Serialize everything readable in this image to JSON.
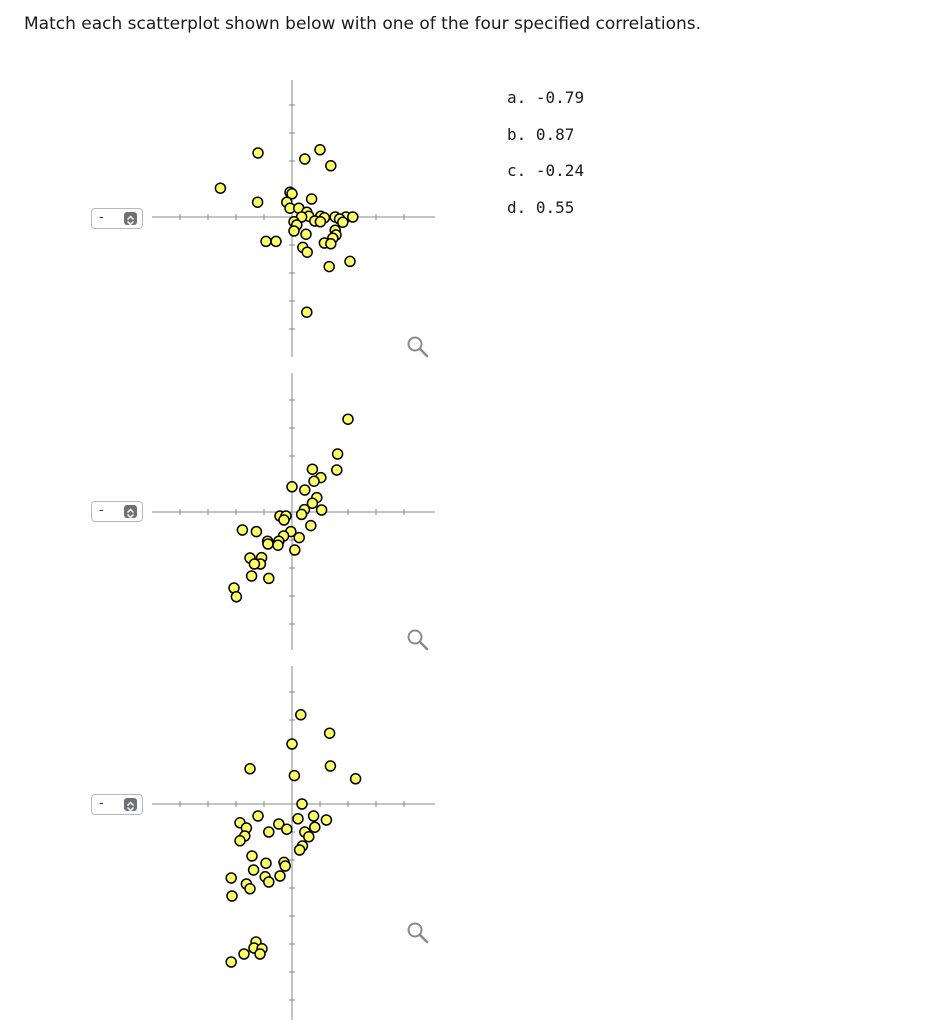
{
  "instruction": "Match each scatterplot shown below with one of the four specified correlations.",
  "choices": [
    {
      "letter": "a.",
      "value": "-0.79"
    },
    {
      "letter": "b.",
      "value": "0.87"
    },
    {
      "letter": "c.",
      "value": "-0.24"
    },
    {
      "letter": "d.",
      "value": "0.55"
    }
  ],
  "selects": [
    {
      "value": "-",
      "icon": "up-down-arrows-icon"
    },
    {
      "value": "-",
      "icon": "up-down-arrows-icon"
    },
    {
      "value": "-",
      "icon": "up-down-arrows-icon"
    }
  ],
  "colors": {
    "point_fill": "#ffff66",
    "point_stroke": "#000000",
    "axis": "#888888"
  },
  "chart_data": [
    {
      "type": "scatter",
      "points": [
        {
          "x": -0.85,
          "y": 1.6
        },
        {
          "x": 0.32,
          "y": 1.45
        },
        {
          "x": 0.7,
          "y": 1.68
        },
        {
          "x": 0.97,
          "y": 1.28
        },
        {
          "x": -1.79,
          "y": 0.72
        },
        {
          "x": -0.05,
          "y": 0.62
        },
        {
          "x": 0.0,
          "y": 0.58
        },
        {
          "x": 0.49,
          "y": 0.45
        },
        {
          "x": -0.86,
          "y": 0.37
        },
        {
          "x": -0.13,
          "y": 0.37
        },
        {
          "x": -0.05,
          "y": 0.22
        },
        {
          "x": 0.17,
          "y": 0.22
        },
        {
          "x": 0.37,
          "y": 0.12
        },
        {
          "x": 0.42,
          "y": 0.02
        },
        {
          "x": 0.72,
          "y": 0.02
        },
        {
          "x": 0.81,
          "y": -0.02
        },
        {
          "x": 1.08,
          "y": 0.0
        },
        {
          "x": 1.35,
          "y": 0.0
        },
        {
          "x": 1.19,
          "y": -0.05
        },
        {
          "x": 0.57,
          "y": -0.1
        },
        {
          "x": 0.71,
          "y": -0.12
        },
        {
          "x": 1.27,
          "y": -0.13
        },
        {
          "x": 1.52,
          "y": 0.0
        },
        {
          "x": 0.24,
          "y": 0.0
        },
        {
          "x": 0.05,
          "y": -0.12
        },
        {
          "x": 0.12,
          "y": -0.2
        },
        {
          "x": 0.05,
          "y": -0.35
        },
        {
          "x": 1.08,
          "y": -0.33
        },
        {
          "x": 0.35,
          "y": -0.43
        },
        {
          "x": 1.1,
          "y": -0.45
        },
        {
          "x": 1.02,
          "y": -0.53
        },
        {
          "x": -0.65,
          "y": -0.61
        },
        {
          "x": -0.4,
          "y": -0.61
        },
        {
          "x": 0.81,
          "y": -0.65
        },
        {
          "x": 0.97,
          "y": -0.67
        },
        {
          "x": 0.27,
          "y": -0.76
        },
        {
          "x": 0.38,
          "y": -0.88
        },
        {
          "x": 1.45,
          "y": -1.11
        },
        {
          "x": 0.93,
          "y": -1.24
        },
        {
          "x": 0.37,
          "y": -2.38
        }
      ]
    },
    {
      "type": "scatter",
      "points": [
        {
          "x": 1.4,
          "y": 2.32
        },
        {
          "x": 1.14,
          "y": 1.45
        },
        {
          "x": 1.12,
          "y": 1.05
        },
        {
          "x": 0.51,
          "y": 1.07
        },
        {
          "x": 0.72,
          "y": 0.86
        },
        {
          "x": 0.55,
          "y": 0.77
        },
        {
          "x": 0.0,
          "y": 0.63
        },
        {
          "x": 0.32,
          "y": 0.55
        },
        {
          "x": 0.62,
          "y": 0.36
        },
        {
          "x": 0.51,
          "y": 0.22
        },
        {
          "x": 0.74,
          "y": 0.05
        },
        {
          "x": 0.31,
          "y": 0.06
        },
        {
          "x": 0.24,
          "y": -0.06
        },
        {
          "x": -0.3,
          "y": -0.1
        },
        {
          "x": -0.15,
          "y": -0.1
        },
        {
          "x": -0.2,
          "y": -0.2
        },
        {
          "x": 0.47,
          "y": -0.34
        },
        {
          "x": -1.24,
          "y": -0.45
        },
        {
          "x": -0.89,
          "y": -0.49
        },
        {
          "x": -0.03,
          "y": -0.49
        },
        {
          "x": -0.21,
          "y": -0.6
        },
        {
          "x": 0.18,
          "y": -0.64
        },
        {
          "x": -0.61,
          "y": -0.73
        },
        {
          "x": -0.33,
          "y": -0.73
        },
        {
          "x": -0.35,
          "y": -0.83
        },
        {
          "x": -0.6,
          "y": -0.8
        },
        {
          "x": 0.07,
          "y": -0.95
        },
        {
          "x": -1.05,
          "y": -1.15
        },
        {
          "x": -0.76,
          "y": -1.14
        },
        {
          "x": -0.79,
          "y": -1.3
        },
        {
          "x": -0.94,
          "y": -1.3
        },
        {
          "x": -1.01,
          "y": -1.6
        },
        {
          "x": -0.58,
          "y": -1.66
        },
        {
          "x": -1.45,
          "y": -1.9
        },
        {
          "x": -1.39,
          "y": -2.12
        }
      ]
    },
    {
      "type": "scatter",
      "points": [
        {
          "x": 0.22,
          "y": 2.23
        },
        {
          "x": 0.0,
          "y": 1.5
        },
        {
          "x": 0.94,
          "y": 1.77
        },
        {
          "x": 0.96,
          "y": 0.95
        },
        {
          "x": -1.05,
          "y": 0.88
        },
        {
          "x": 0.06,
          "y": 0.71
        },
        {
          "x": 1.59,
          "y": 0.63
        },
        {
          "x": 0.25,
          "y": 0.0
        },
        {
          "x": -0.85,
          "y": -0.3
        },
        {
          "x": 0.15,
          "y": -0.37
        },
        {
          "x": 0.54,
          "y": -0.3
        },
        {
          "x": 0.86,
          "y": -0.4
        },
        {
          "x": 0.57,
          "y": -0.58
        },
        {
          "x": -1.3,
          "y": -0.47
        },
        {
          "x": -0.33,
          "y": -0.5
        },
        {
          "x": -1.14,
          "y": -0.6
        },
        {
          "x": -0.13,
          "y": -0.63
        },
        {
          "x": -0.58,
          "y": -0.7
        },
        {
          "x": 0.32,
          "y": -0.7
        },
        {
          "x": 0.42,
          "y": -0.82
        },
        {
          "x": -1.18,
          "y": -0.8
        },
        {
          "x": -1.3,
          "y": -0.92
        },
        {
          "x": 0.26,
          "y": -1.05
        },
        {
          "x": 0.19,
          "y": -1.15
        },
        {
          "x": -1.0,
          "y": -1.3
        },
        {
          "x": -0.65,
          "y": -1.48
        },
        {
          "x": -0.2,
          "y": -1.46
        },
        {
          "x": -0.17,
          "y": -1.55
        },
        {
          "x": -0.96,
          "y": -1.65
        },
        {
          "x": -0.3,
          "y": -1.8
        },
        {
          "x": -1.52,
          "y": -1.85
        },
        {
          "x": -0.67,
          "y": -1.82
        },
        {
          "x": -0.58,
          "y": -1.95
        },
        {
          "x": -1.14,
          "y": -2.0
        },
        {
          "x": -1.05,
          "y": -2.12
        },
        {
          "x": -1.5,
          "y": -2.3
        },
        {
          "x": -0.9,
          "y": -3.45
        },
        {
          "x": -0.95,
          "y": -3.6
        },
        {
          "x": -0.75,
          "y": -3.62
        },
        {
          "x": -0.8,
          "y": -3.75
        },
        {
          "x": -1.2,
          "y": -3.75
        },
        {
          "x": -1.52,
          "y": -3.95
        }
      ]
    }
  ]
}
